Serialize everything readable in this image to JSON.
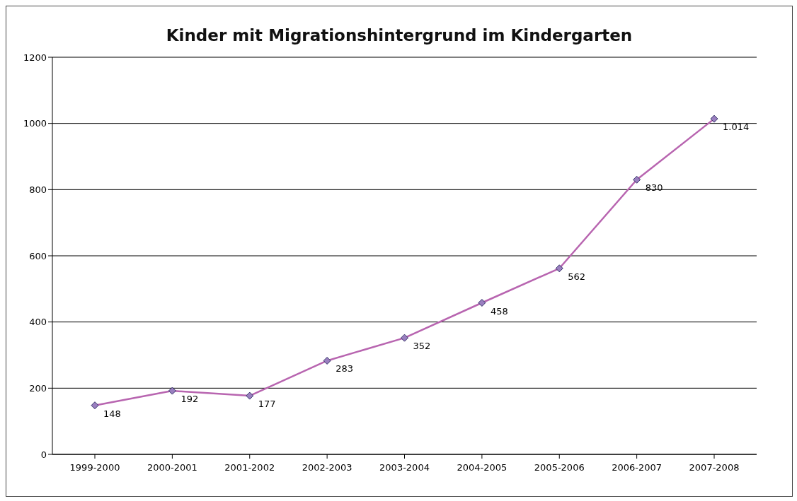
{
  "chart_data": {
    "type": "line",
    "title": "Kinder mit Migrationshintergrund im Kindergarten",
    "categories": [
      "1999-2000",
      "2000-2001",
      "2001-2002",
      "2002-2003",
      "2003-2004",
      "2004-2005",
      "2005-2006",
      "2006-2007",
      "2007-2008"
    ],
    "series": [
      {
        "color": "#b865b0",
        "values": [
          148,
          192,
          177,
          283,
          352,
          458,
          562,
          830,
          1014
        ],
        "value_labels": [
          "148",
          "192",
          "177",
          "283",
          "352",
          "458",
          "562",
          "830",
          "1.014"
        ]
      }
    ],
    "ylim": [
      0,
      1200
    ],
    "yticks": [
      0,
      200,
      400,
      600,
      800,
      1000,
      1200
    ],
    "grid": "y",
    "marker": "diamond",
    "line_style": "solid"
  }
}
